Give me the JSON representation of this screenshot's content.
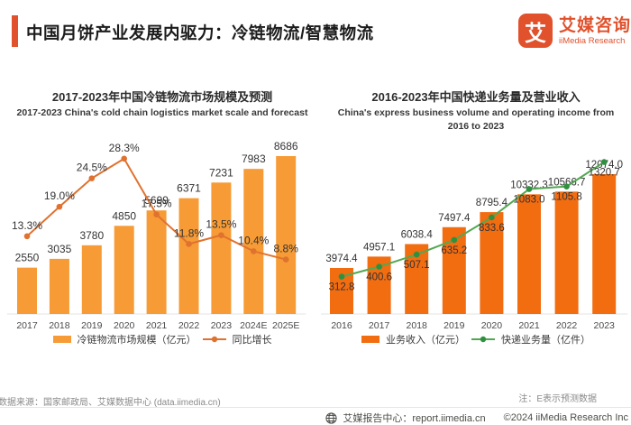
{
  "header": {
    "title": "中国月饼产业发展内驱力：冷链物流/智慧物流",
    "brand": {
      "glyph": "艾",
      "name_cn": "艾媒咨询",
      "name_en": "iiMedia Research"
    }
  },
  "colors": {
    "accent": "#E0512C",
    "left_bar": "#F69B35",
    "left_line": "#E0722F",
    "right_bar": "#F26C10",
    "right_line": "#52A852",
    "right_marker": "#2F9140",
    "axis": "#e3e3e3"
  },
  "chart_data": [
    {
      "type": "bar",
      "title": "2017-2023年中国冷链物流市场规模及预测",
      "subtitle_lines": [
        "2017-2023 China's cold chain logistics market scale and forecast",
        ""
      ],
      "categories": [
        "2017",
        "2018",
        "2019",
        "2020",
        "2021",
        "2022",
        "2023",
        "2024E",
        "2025E"
      ],
      "series": [
        {
          "name": "冷链物流市场规模（亿元）",
          "type": "bar",
          "values": [
            2550,
            3035,
            3780,
            4850,
            5699,
            6371,
            7231,
            7983,
            8686
          ],
          "labels": [
            "2550",
            "3035",
            "3780",
            "4850",
            "5699",
            "6371",
            "7231",
            "7983",
            "8686"
          ],
          "color": "#F69B35",
          "marker_color": "#F69B35"
        },
        {
          "name": "同比增长",
          "type": "line",
          "unit": "%",
          "values": [
            13.3,
            19.0,
            24.5,
            28.3,
            17.5,
            11.8,
            13.5,
            10.4,
            8.8
          ],
          "labels": [
            "13.3%",
            "19.0%",
            "24.5%",
            "28.3%",
            "17.5%",
            "11.8%",
            "13.5%",
            "10.4%",
            "8.8%"
          ],
          "color": "#E0722F",
          "marker_color": "#E0722F"
        }
      ],
      "ylim": [
        0,
        9000
      ],
      "y2lim": [
        0,
        30
      ],
      "grid": false,
      "legend_position": "bottom"
    },
    {
      "type": "bar",
      "title": "2016-2023年中国快递业务量及营业收入",
      "subtitle_lines": [
        "China's express business volume and operating income from",
        "2016 to 2023"
      ],
      "categories": [
        "2016",
        "2017",
        "2018",
        "2019",
        "2020",
        "2021",
        "2022",
        "2023"
      ],
      "series": [
        {
          "name": "业务收入（亿元）",
          "type": "bar",
          "values": [
            3974.4,
            4957.1,
            6038.4,
            7497.4,
            8795.4,
            10332.3,
            10566.7,
            12074.0
          ],
          "labels": [
            "3974.4",
            "4957.1",
            "6038.4",
            "7497.4",
            "8795.4",
            "10332.3",
            "10566.7",
            "12074.0"
          ],
          "color": "#F26C10",
          "marker_color": "#F26C10"
        },
        {
          "name": "快递业务量（亿件）",
          "type": "line",
          "values": [
            312.8,
            400.6,
            507.1,
            635.2,
            833.6,
            1083.0,
            1105.8,
            1320.7
          ],
          "labels": [
            "312.8",
            "400.6",
            "507.1",
            "635.2",
            "833.6",
            "1083.0",
            "1105.8",
            "1320.7"
          ],
          "color": "#52A852",
          "marker_color": "#2F9140"
        }
      ],
      "ylim": [
        0,
        13000
      ],
      "y2lim": [
        0,
        1400
      ],
      "grid": false,
      "legend_position": "bottom"
    }
  ],
  "notes": {
    "source": "数据来源：国家邮政局、艾媒数据中心 (data.iimedia.cn)",
    "forecast": "注：E表示预测数据"
  },
  "footer": {
    "report_center": "艾媒报告中心：report.iimedia.cn",
    "copyright": "©2024  iiMedia Research Inc"
  }
}
